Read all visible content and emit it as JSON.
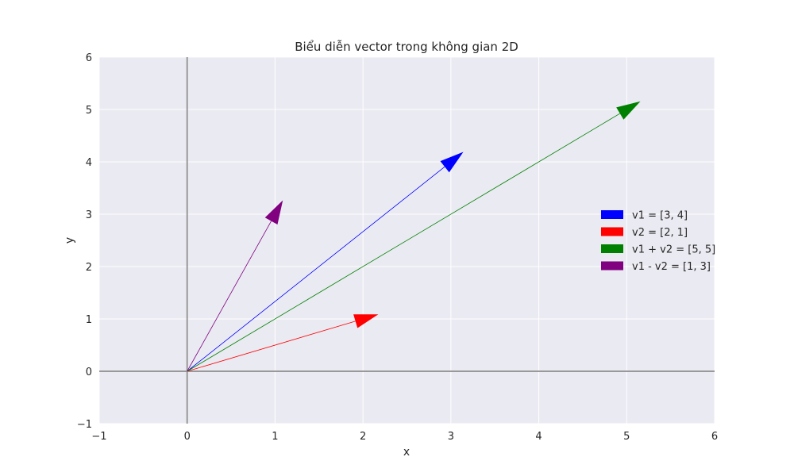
{
  "chart_data": {
    "type": "vector",
    "title": "Biểu diễn vector trong không gian 2D",
    "xlabel": "x",
    "ylabel": "y",
    "xlim": [
      -1,
      6
    ],
    "ylim": [
      -1,
      6
    ],
    "xticks": [
      "−1",
      "0",
      "1",
      "2",
      "3",
      "4",
      "5",
      "6"
    ],
    "yticks": [
      "−1",
      "0",
      "1",
      "2",
      "3",
      "4",
      "5",
      "6"
    ],
    "grid": true,
    "legend_position": "right",
    "vectors": [
      {
        "name": "v1 = [3, 4]",
        "origin": [
          0,
          0
        ],
        "components": [
          3,
          4
        ],
        "color": "#0000ff"
      },
      {
        "name": "v2 = [2, 1]",
        "origin": [
          0,
          0
        ],
        "components": [
          2,
          1
        ],
        "color": "#ff0000"
      },
      {
        "name": "v1 + v2 = [5, 5]",
        "origin": [
          0,
          0
        ],
        "components": [
          5,
          5
        ],
        "color": "#008000"
      },
      {
        "name": "v1 - v2 = [1, 3]",
        "origin": [
          0,
          0
        ],
        "components": [
          1,
          3
        ],
        "color": "#800080"
      }
    ],
    "reference_lines": {
      "x": 0,
      "y": 0,
      "color": "#999999"
    }
  }
}
